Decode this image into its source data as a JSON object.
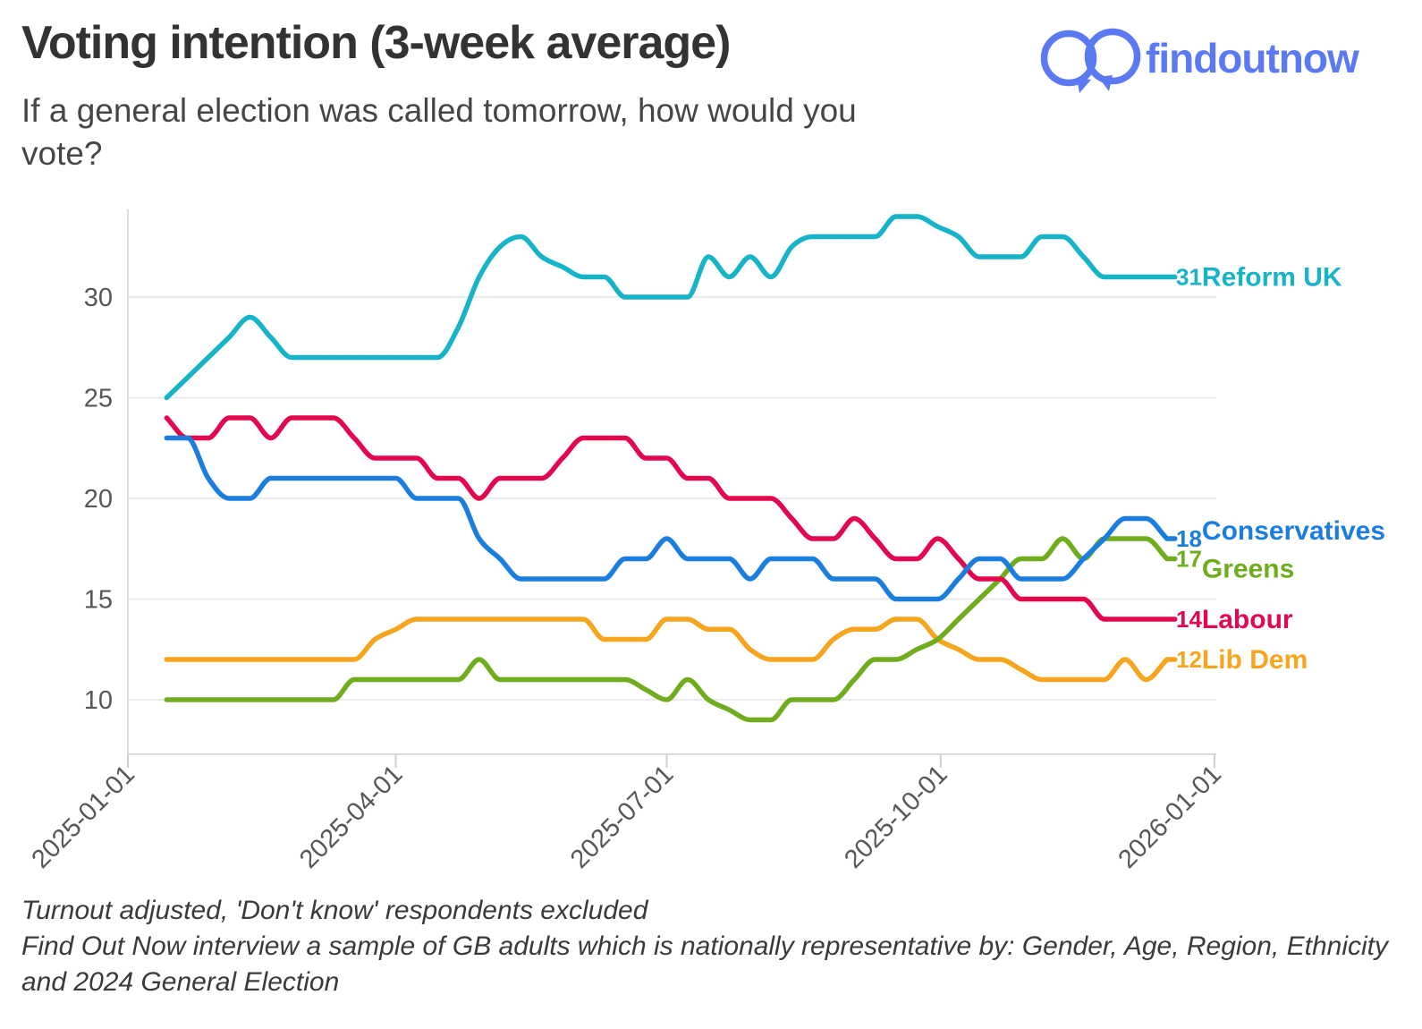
{
  "header": {
    "title": "Voting intention (3-week average)",
    "subtitle_lines": [
      "If a general election was called tomorrow, how would you",
      "vote?"
    ]
  },
  "brand": {
    "name": "findoutnow",
    "color": "#5B79F3"
  },
  "footer": {
    "lines": [
      "Turnout adjusted, 'Don't know' respondents excluded",
      "Find Out Now interview a sample of GB adults which is nationally representative by: Gender, Age, Region, Ethnicity",
      "and 2024 General Election"
    ]
  },
  "chart_data": {
    "type": "line",
    "title": "Voting intention (3-week average)",
    "x_start_date": "2025-01-14",
    "x_step_days": 7,
    "n_points": 49,
    "x_ticks": [
      "2025-01-01",
      "2025-04-01",
      "2025-07-01",
      "2025-10-01",
      "2026-01-01"
    ],
    "y_ticks": [
      10,
      15,
      20,
      25,
      30
    ],
    "ylim": [
      7.5,
      34.5
    ],
    "grid": "horizontal",
    "legend_position": "right-end-labels",
    "series": [
      {
        "name": "Lib Dem",
        "color": "#F7A41E",
        "end_label": 12,
        "values": [
          12,
          12,
          12,
          12,
          12,
          12,
          12,
          12,
          12,
          12,
          13,
          13.5,
          14,
          14,
          14,
          14,
          14,
          14,
          14,
          14,
          14,
          13,
          13,
          13,
          14,
          14,
          13.5,
          13.5,
          12.5,
          12,
          12,
          12,
          13,
          13.5,
          13.5,
          14,
          14,
          13,
          12.5,
          12,
          12,
          11.5,
          11,
          11,
          11,
          11,
          12,
          11,
          12
        ]
      },
      {
        "name": "Greens",
        "color": "#6FAC1E",
        "end_label": 17,
        "values": [
          10,
          10,
          10,
          10,
          10,
          10,
          10,
          10,
          10,
          11,
          11,
          11,
          11,
          11,
          11,
          12,
          11,
          11,
          11,
          11,
          11,
          11,
          11,
          10.5,
          10,
          11,
          10,
          9.5,
          9,
          9,
          10,
          10,
          10,
          11,
          12,
          12,
          12.5,
          13,
          14,
          15,
          16,
          17,
          17,
          18,
          17,
          18,
          18,
          18,
          17
        ]
      },
      {
        "name": "Labour",
        "color": "#E3084D",
        "end_label": 14,
        "values": [
          24,
          23,
          23,
          24,
          24,
          23,
          24,
          24,
          24,
          23,
          22,
          22,
          22,
          21,
          21,
          20,
          21,
          21,
          21,
          22,
          23,
          23,
          23,
          22,
          22,
          21,
          21,
          20,
          20,
          20,
          19,
          18,
          18,
          19,
          18,
          17,
          17,
          18,
          17,
          16,
          16,
          15,
          15,
          15,
          15,
          14,
          14,
          14,
          14
        ]
      },
      {
        "name": "Conservatives",
        "color": "#1B7EDE",
        "end_label": 18,
        "values": [
          23,
          23,
          21,
          20,
          20,
          21,
          21,
          21,
          21,
          21,
          21,
          21,
          20,
          20,
          20,
          18,
          17,
          16,
          16,
          16,
          16,
          16,
          17,
          17,
          18,
          17,
          17,
          17,
          16,
          17,
          17,
          17,
          16,
          16,
          16,
          15,
          15,
          15,
          16,
          17,
          17,
          16,
          16,
          16,
          17,
          18,
          19,
          19,
          18
        ]
      },
      {
        "name": "Reform UK",
        "color": "#17B3C7",
        "end_label": 31,
        "values": [
          25,
          26,
          27,
          28,
          29,
          28,
          27,
          27,
          27,
          27,
          27,
          27,
          27,
          27,
          28.5,
          31,
          32.5,
          33,
          32,
          31.5,
          31,
          31,
          30,
          30,
          30,
          30,
          32,
          31,
          32,
          31,
          32.5,
          33,
          33,
          33,
          33,
          34,
          34,
          33.5,
          33,
          32,
          32,
          32,
          33,
          33,
          32,
          31,
          31,
          31,
          31
        ]
      }
    ]
  }
}
